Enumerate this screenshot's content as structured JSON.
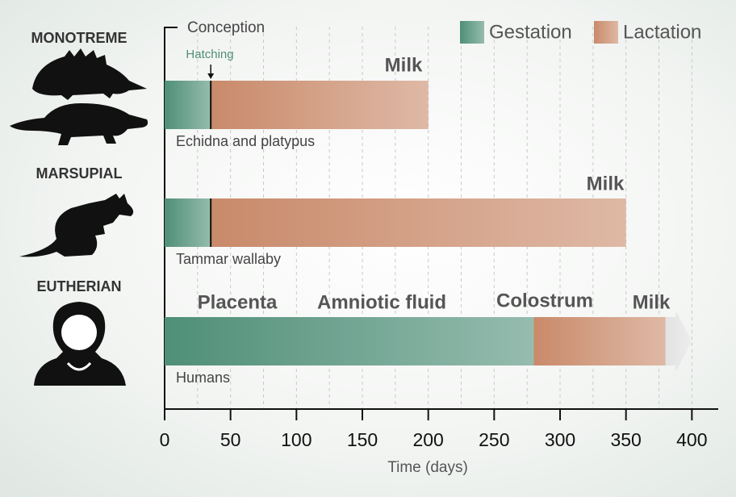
{
  "chart_data": {
    "type": "stacked-bar-horizontal",
    "groups": [
      "MONOTREME",
      "MARSUPIAL",
      "EUTHERIAN"
    ],
    "categories": [
      "Echidna and platypus",
      "Tammar wallaby",
      "Humans"
    ],
    "series": [
      {
        "name": "Gestation",
        "color": "#4f8f78",
        "values": [
          35,
          35,
          280
        ]
      },
      {
        "name": "Lactation",
        "color": "#c98a6a",
        "values": [
          165,
          315,
          100
        ]
      },
      {
        "name": "Colostrum",
        "color": "#e2e2e2",
        "values": [
          null,
          null,
          20
        ]
      }
    ],
    "legend_series": [
      "Gestation",
      "Lactation"
    ],
    "open_ended": [
      false,
      false,
      true
    ],
    "annotations": [
      {
        "text": "Conception"
      },
      {
        "text": "Hatching"
      },
      {
        "text": "Milk"
      },
      {
        "text": "Milk"
      },
      {
        "text": "Placenta"
      },
      {
        "text": "Amniotic fluid"
      },
      {
        "text": "Milk"
      }
    ],
    "xlabel": "Time (days)",
    "xlim": [
      0,
      420
    ],
    "xticks": [
      0,
      50,
      100,
      150,
      200,
      250,
      300,
      350,
      400
    ],
    "minor_xticks": [
      25,
      75,
      125,
      175,
      225,
      275,
      325,
      375
    ],
    "grid": true
  }
}
